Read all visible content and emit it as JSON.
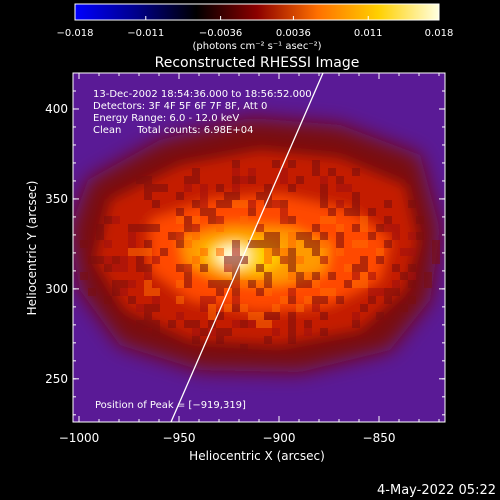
{
  "chart_data": {
    "type": "heatmap",
    "title": "Reconstructed RHESSI Image",
    "xlabel": "Heliocentric X (arcsec)",
    "ylabel": "Heliocentric Y (arcsec)",
    "xlim": [
      -1003,
      -817
    ],
    "ylim": [
      226,
      420
    ],
    "x_ticks": [
      -1000,
      -950,
      -900,
      -850
    ],
    "x_tick_labels": [
      "−1000",
      "−950",
      "−900",
      "−850"
    ],
    "y_ticks": [
      250,
      300,
      350,
      400
    ],
    "y_tick_labels": [
      "250",
      "300",
      "350",
      "400"
    ],
    "colorbar": {
      "range": [
        -0.018,
        0.018
      ],
      "ticks": [
        -0.018,
        -0.011,
        -0.0036,
        0.0036,
        0.011,
        0.018
      ],
      "tick_labels": [
        "−0.018",
        "−0.011",
        "−0.0036",
        "0.0036",
        "0.011",
        "0.018"
      ],
      "unit_label": "(photons cm⁻² s⁻¹ asec⁻²)",
      "colors": [
        "#0000ff",
        "#00008c",
        "#000000",
        "#8c0000",
        "#ff7000",
        "#ffd000",
        "#ffffe0"
      ]
    },
    "annotations": [
      "13-Dec-2002 18:54:36.000 to 18:56:52.000",
      "Detectors: 3F 4F 5F 6F 7F 8F, Att 0",
      "Energy Range: 6.0 - 12.0 keV",
      "Clean     Total counts: 6.98E+04"
    ],
    "peak_label": "Position of Peak = [−919,319]",
    "peak": [
      -919,
      319
    ],
    "limb_line": [
      [
        -954,
        226
      ],
      [
        -878,
        420
      ]
    ],
    "grid": false
  },
  "footer": {
    "timestamp": "4-May-2022 05:22"
  }
}
